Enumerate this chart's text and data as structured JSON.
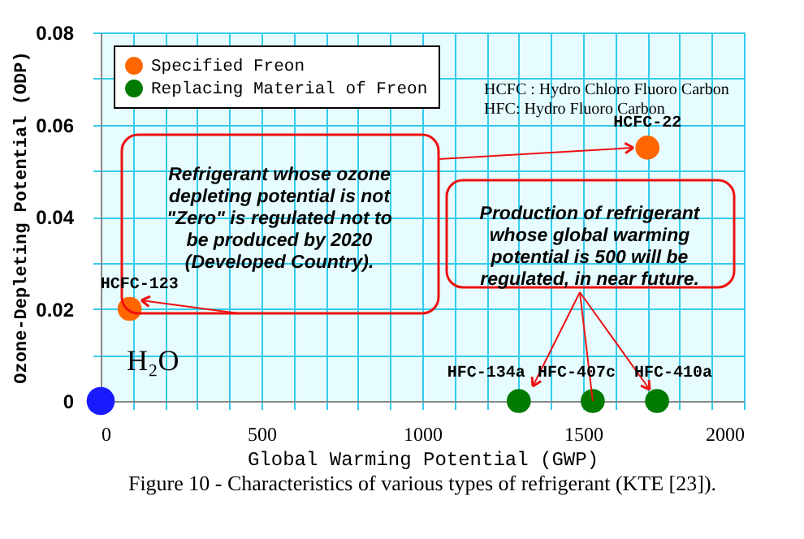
{
  "chart_data": {
    "type": "scatter",
    "title": "Figure 10 - Characteristics of various types of refrigerant (KTE [23]).",
    "xlabel": "Global Warming Potential (GWP)",
    "ylabel": "Ozone-Depleting Potential (ODP)",
    "series": [
      {
        "name": "Specified Freon",
        "color": "#ff6600",
        "x": [
          1700,
          90
        ],
        "values": [
          0.055,
          0.02
        ]
      },
      {
        "name": "Replacing Material of Freon",
        "color": "#007a00",
        "x": [
          1300,
          1530,
          1730
        ],
        "values": [
          0,
          0,
          0
        ]
      },
      {
        "color": "#1a1aff",
        "x": [
          0
        ],
        "values": [
          0
        ]
      }
    ],
    "xlim": [
      0,
      2000
    ],
    "xticks": [
      0,
      {
        "value": 100,
        "label": null
      },
      {
        "value": 200,
        "label": null
      },
      {
        "value": 300,
        "label": null
      },
      {
        "value": 400,
        "label": null
      },
      500,
      {
        "value": 600,
        "label": null
      },
      {
        "value": 700,
        "label": null
      },
      {
        "value": 800,
        "label": null
      },
      {
        "value": 900,
        "label": null
      },
      1000,
      {
        "value": 1100,
        "label": null
      },
      {
        "value": 1200,
        "label": null
      },
      {
        "value": 1300,
        "label": null
      },
      {
        "value": 1400,
        "label": null
      },
      1500,
      {
        "value": 1600,
        "label": null
      },
      {
        "value": 1700,
        "label": null
      },
      {
        "value": 1800,
        "label": null
      },
      {
        "value": 1900,
        "label": null
      },
      2000
    ],
    "ylim": [
      0,
      0.08
    ],
    "yticks": [
      0,
      {
        "value": 0.01,
        "label": null
      },
      0.02,
      {
        "value": 0.03,
        "label": null
      },
      0.04,
      {
        "value": 0.05,
        "label": null
      },
      0.06,
      {
        "value": 0.07,
        "label": null
      },
      0.08
    ],
    "grid": true,
    "legend": "top left",
    "marker": "circle",
    "annotations": [
      "HCFC : Hydro Chloro Fluoro Carbon",
      "HFC: Hydro Fluoro Carbon",
      "Refrigerant whose ozone\ndepleting potential is not\n\"Zero\" is regulated not to\nbe produced by 2020\n(Developed Country).",
      {
        "text": "Production of refrigerant\nwhose global warming\npotential is 500 will be\nregulated, in near future.",
        "x": 1530,
        "y": 0
      },
      {
        "text": "HCFC-22",
        "x": 1700,
        "y": 0.055
      },
      {
        "text": "HCFC-123",
        "x": 90,
        "y": 0.02
      },
      {
        "text": "HFC-134a",
        "x": 1300,
        "y": 0
      },
      {
        "text": "HFC-407c",
        "x": 1530,
        "y": 0
      },
      {
        "text": "HFC-410a",
        "x": 1730,
        "y": 0
      },
      {
        "text": "H₂O",
        "x": 0,
        "y": 0
      }
    ]
  }
}
